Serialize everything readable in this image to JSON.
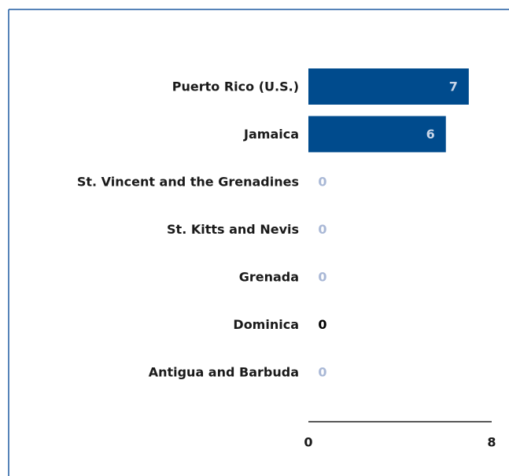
{
  "chart_data": {
    "type": "bar",
    "orientation": "horizontal",
    "categories": [
      "Puerto Rico (U.S.)",
      "Jamaica",
      "St. Vincent and the Grenadines",
      "St. Kitts and Nevis",
      "Grenada",
      "Dominica",
      "Antigua and Barbuda"
    ],
    "values": [
      7,
      6,
      0,
      0,
      0,
      0,
      0
    ],
    "color": "#004b8d",
    "value_label_colors": [
      "#c9d6e8",
      "#c9d6e8",
      "#a9b8d6",
      "#a9b8d6",
      "#a9b8d6",
      "#000000",
      "#a9b8d6"
    ],
    "xlim": [
      0,
      8
    ],
    "xticks": [
      0,
      8
    ]
  }
}
